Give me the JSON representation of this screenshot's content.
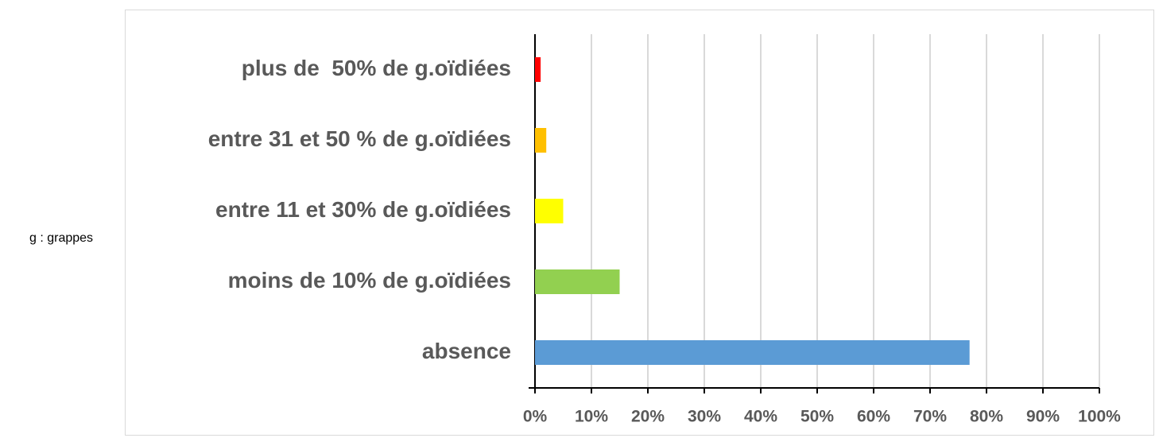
{
  "chart_data": {
    "type": "bar",
    "orientation": "horizontal",
    "annotation": "g : grappes",
    "categories": [
      "plus de  50% de g.oïdiées",
      "entre 31 et 50 % de g.oïdiées",
      "entre 11 et 30% de g.oïdiées",
      "moins de 10% de g.oïdiées",
      "absence"
    ],
    "values": [
      1,
      2,
      5,
      15,
      77
    ],
    "colors": [
      "#ff0000",
      "#ffc000",
      "#ffff00",
      "#92d050",
      "#5b9bd5"
    ],
    "xlim": [
      0,
      100
    ],
    "xticks": [
      {
        "value": 0,
        "label": "0%"
      },
      {
        "value": 10,
        "label": "10%"
      },
      {
        "value": 20,
        "label": "20%"
      },
      {
        "value": 30,
        "label": "30%"
      },
      {
        "value": 40,
        "label": "40%"
      },
      {
        "value": 50,
        "label": "50%"
      },
      {
        "value": 60,
        "label": "60%"
      },
      {
        "value": 70,
        "label": "70%"
      },
      {
        "value": 80,
        "label": "80%"
      },
      {
        "value": 90,
        "label": "90%"
      },
      {
        "value": 100,
        "label": "100%"
      }
    ],
    "grid": true
  }
}
